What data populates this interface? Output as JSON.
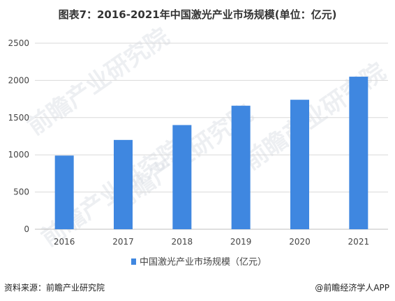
{
  "title": "图表7：2016-2021年中国激光产业市场规模(单位：亿元)",
  "footer": {
    "source": "资料来源：前瞻产业研究院",
    "brand": "@前瞻经济学人APP"
  },
  "watermarks": [
    "前瞻产业研究院",
    "前瞻产业研究院",
    "前瞻产业研究院",
    "前瞻产业研究院"
  ],
  "colors": {
    "bar": "#3f87e0",
    "grid": "#d9d9d9",
    "axis": "#bfbfbf"
  },
  "chart_data": {
    "type": "bar",
    "categories": [
      "2016",
      "2017",
      "2018",
      "2019",
      "2020",
      "2021"
    ],
    "series": [
      {
        "name": "中国激光产业市场规模（亿元）",
        "values": [
          990,
          1200,
          1400,
          1660,
          1740,
          2050
        ]
      }
    ],
    "yticks": [
      0,
      500,
      1000,
      1500,
      2000,
      2500
    ],
    "ylim": [
      0,
      2500
    ],
    "grid": true,
    "legend_position": "bottom"
  }
}
